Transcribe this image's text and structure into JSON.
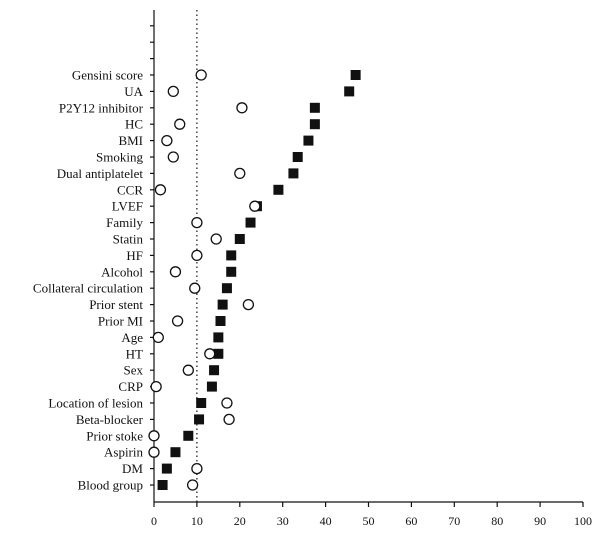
{
  "chart_data": {
    "type": "scatter",
    "categories": [
      "Gensini score",
      "UA",
      "P2Y12 inhibitor",
      "HC",
      "BMI",
      "Smoking",
      "Dual antiplatelet",
      "CCR",
      "LVEF",
      "Family",
      "Statin",
      "HF",
      "Alcohol",
      "Collateral circulation",
      "Prior stent",
      "Prior MI",
      "Age",
      "HT",
      "Sex",
      "CRP",
      "Location of lesion",
      "Beta-blocker",
      "Prior stoke",
      "Aspirin",
      "DM",
      "Blood group"
    ],
    "series": [
      {
        "marker": "filled-square",
        "values": [
          47,
          45.5,
          37.5,
          37.5,
          36,
          33.5,
          32.5,
          29,
          24,
          22.5,
          20,
          18,
          18,
          17,
          16,
          15.5,
          15,
          15,
          14,
          13.5,
          11,
          10.5,
          8,
          5,
          3,
          2
        ]
      },
      {
        "marker": "open-circle",
        "values": [
          11,
          4.5,
          20.5,
          6,
          3,
          4.5,
          20,
          1.5,
          23.5,
          10,
          14.5,
          10,
          5,
          9.5,
          22,
          5.5,
          1,
          13,
          8,
          0.5,
          17,
          17.5,
          0,
          0,
          10,
          9
        ]
      }
    ],
    "x_ticks": [
      "0",
      "10",
      "20",
      "30",
      "40",
      "50",
      "60",
      "70",
      "80",
      "90",
      "100"
    ],
    "xlim": [
      0,
      100
    ],
    "reference_line_x": 10,
    "title": "",
    "xlabel": "",
    "ylabel": ""
  }
}
